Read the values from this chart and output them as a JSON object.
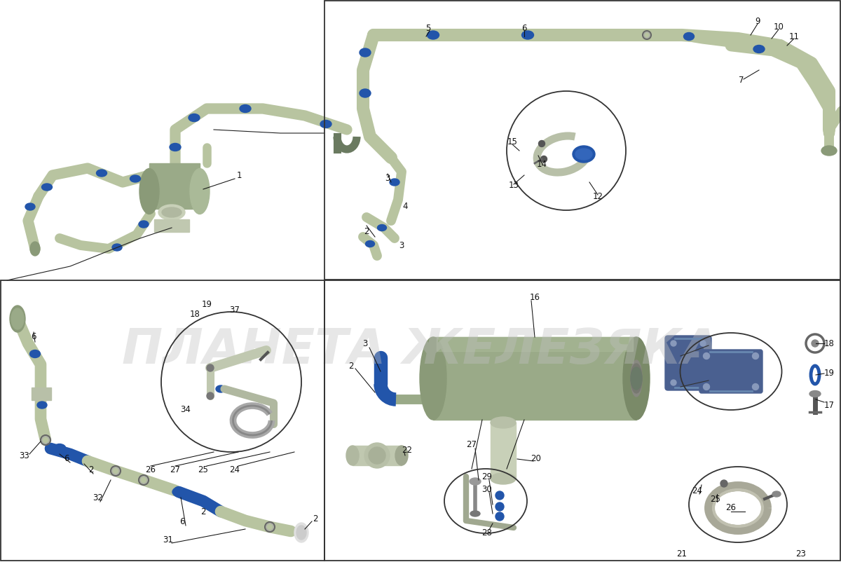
{
  "background_color": "#ffffff",
  "watermark_text": "ПЛАНЕТА ЖЕЛЕЗЯКА",
  "watermark_color": "#c0c0c0",
  "watermark_alpha": 0.38,
  "pipe_color": "#b8c4a0",
  "pipe_edge_color": "#8a9878",
  "blue_color": "#2255aa",
  "dark_color": "#6a7a60",
  "label_color": "#111111",
  "label_fontsize": 8.5,
  "border_color": "#444444",
  "fig_width": 12.0,
  "fig_height": 8.02
}
